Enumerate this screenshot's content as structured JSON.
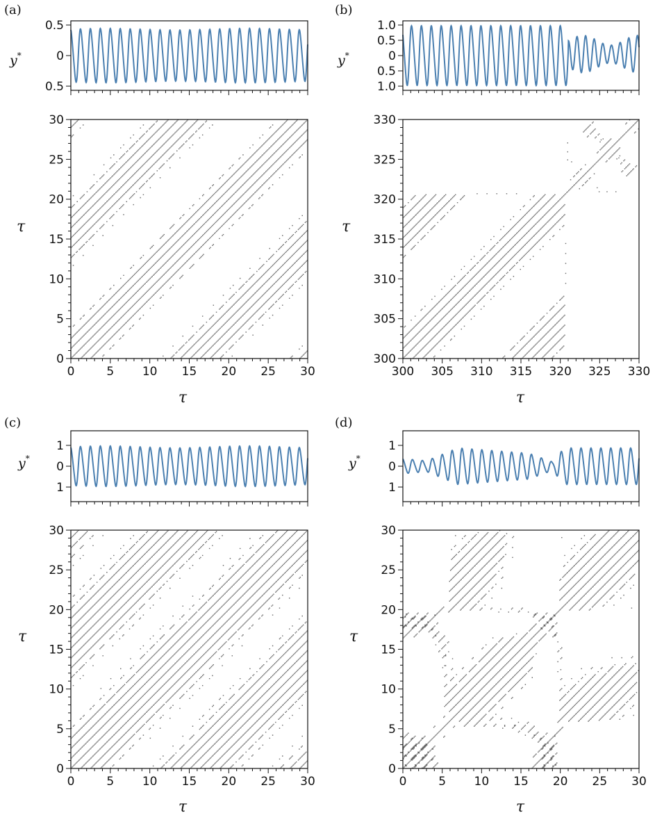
{
  "figure": {
    "panels": [
      {
        "id": "a",
        "label": "(a)"
      },
      {
        "id": "b",
        "label": "(b)"
      },
      {
        "id": "c",
        "label": "(c)"
      },
      {
        "id": "d",
        "label": "(d)"
      }
    ],
    "ts_ylabel": "y",
    "ts_ylabel_sup": "*",
    "rp_ylabel": "τ",
    "xlabel": "τ"
  },
  "chart_data": [
    {
      "panel": "a",
      "kind": "timeseries",
      "type": "line",
      "ylabel": "y*",
      "xlim": [
        0,
        30
      ],
      "ylim": [
        -0.5,
        0.5
      ],
      "yticks": [
        0.5,
        0,
        -0.5
      ],
      "ytick_labels": [
        "0.5",
        "0",
        "0.5"
      ],
      "color": "#4a7fb0",
      "period": 1.26,
      "amplitude": 0.42,
      "phase": 1.57,
      "amp_mod": 0.03
    },
    {
      "panel": "a",
      "kind": "recurrence",
      "type": "heatmap",
      "xlim": [
        0,
        30
      ],
      "ylim": [
        0,
        30
      ],
      "xticks": [
        0,
        5,
        10,
        15,
        20,
        25,
        30
      ],
      "yticks": [
        0,
        5,
        10,
        15,
        20,
        25,
        30
      ],
      "xlabel": "τ",
      "ylabel": "τ",
      "color": "#333333"
    },
    {
      "panel": "b",
      "kind": "timeseries",
      "type": "line",
      "ylabel": "y*",
      "xlim": [
        300,
        330
      ],
      "ylim": [
        -1.0,
        1.0
      ],
      "yticks": [
        1.0,
        0.5,
        0,
        -0.5,
        -1.0
      ],
      "ytick_labels": [
        "1.0",
        "0.5",
        "0",
        "0.5",
        "1.0"
      ],
      "color": "#4a7fb0",
      "period": 1.26,
      "amplitude": 0.95,
      "phase": 1.57,
      "regime_change_at": 321,
      "amp_after": 0.45
    },
    {
      "panel": "b",
      "kind": "recurrence",
      "type": "heatmap",
      "xlim": [
        300,
        330
      ],
      "ylim": [
        300,
        330
      ],
      "xticks": [
        300,
        305,
        310,
        315,
        320,
        325,
        330
      ],
      "yticks": [
        300,
        305,
        310,
        315,
        320,
        325,
        330
      ],
      "xlabel": "τ",
      "ylabel": "τ",
      "color": "#333333"
    },
    {
      "panel": "c",
      "kind": "timeseries",
      "type": "line",
      "ylabel": "y*",
      "xlim": [
        0,
        30
      ],
      "ylim": [
        -1.5,
        1.5
      ],
      "yticks": [
        1,
        0,
        -1
      ],
      "ytick_labels": [
        "1",
        "0",
        "1"
      ],
      "color": "#4a7fb0",
      "period": 1.26,
      "amplitude": 0.9,
      "phase": 1.57,
      "amp_mod": 0.05
    },
    {
      "panel": "c",
      "kind": "recurrence",
      "type": "heatmap",
      "xlim": [
        0,
        30
      ],
      "ylim": [
        0,
        30
      ],
      "xticks": [
        0,
        5,
        10,
        15,
        20,
        25,
        30
      ],
      "yticks": [
        0,
        5,
        10,
        15,
        20,
        25,
        30
      ],
      "xlabel": "τ",
      "ylabel": "τ",
      "color": "#333333"
    },
    {
      "panel": "d",
      "kind": "timeseries",
      "type": "line",
      "ylabel": "y*",
      "xlim": [
        0,
        30
      ],
      "ylim": [
        -1.5,
        1.5
      ],
      "yticks": [
        1,
        0,
        -1
      ],
      "ytick_labels": [
        "1",
        "0",
        "1"
      ],
      "color": "#4a7fb0",
      "period": 1.26,
      "amplitude": 0.85,
      "phase": 1.57,
      "envelope": [
        [
          0,
          0.35
        ],
        [
          3,
          0.25
        ],
        [
          7,
          0.85
        ],
        [
          16,
          0.6
        ],
        [
          19,
          0.2
        ],
        [
          20.5,
          0.85
        ],
        [
          30,
          0.85
        ]
      ]
    },
    {
      "panel": "d",
      "kind": "recurrence",
      "type": "heatmap",
      "xlim": [
        0,
        30
      ],
      "ylim": [
        0,
        30
      ],
      "xticks": [
        0,
        5,
        10,
        15,
        20,
        25,
        30
      ],
      "yticks": [
        0,
        5,
        10,
        15,
        20,
        25,
        30
      ],
      "xlabel": "τ",
      "ylabel": "τ",
      "color": "#333333"
    }
  ]
}
